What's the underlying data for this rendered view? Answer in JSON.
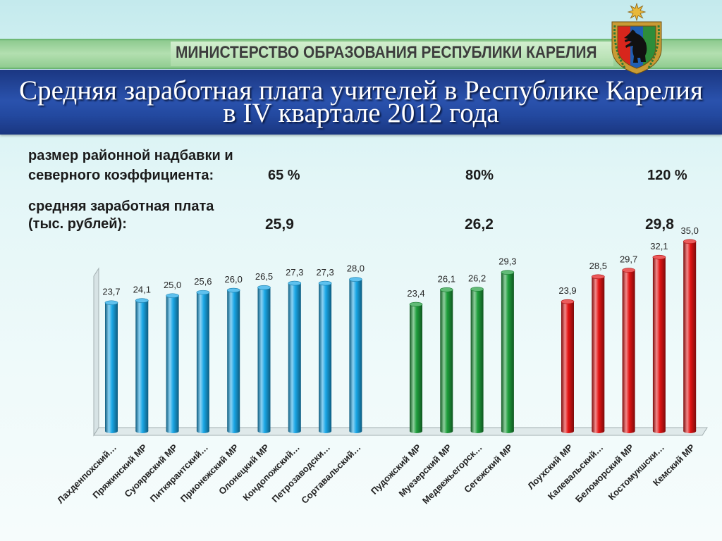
{
  "banner": {
    "text": "МИНИСТЕРСТВО ОБРАЗОВАНИЯ РЕСПУБЛИКИ КАРЕЛИЯ"
  },
  "emblem_icon": "karelia-coat-of-arms-icon",
  "title": {
    "line1": "Средняя заработная плата учителей в Республике Карелия",
    "line2": "в IV квартале 2012 года"
  },
  "info": {
    "allowance_label_line1": "размер районной надбавки и",
    "allowance_label_line2": "северного коэффициента:",
    "salary_label_line1": "средняя заработная плата",
    "salary_label_line2": "(тыс. рублей):"
  },
  "chart_data": {
    "type": "bar",
    "ylim": [
      0,
      40
    ],
    "series": [
      {
        "name": "65 %",
        "average": "25,9",
        "color": "#1aa7e6",
        "categories": [
          "Лахденпохский…",
          "Пряжинский МР",
          "Суоярвский МР",
          "Питкярантский…",
          "Прионежский МР",
          "Олонецкий МР",
          "Кондопожский…",
          "Петрозаводски…",
          "Сортавальский…"
        ],
        "values": [
          23.7,
          24.1,
          25.0,
          25.6,
          26.0,
          26.5,
          27.3,
          27.3,
          28.0
        ],
        "value_labels": [
          "23,7",
          "24,1",
          "25,0",
          "25,6",
          "26,0",
          "26,5",
          "27,3",
          "27,3",
          "28,0"
        ]
      },
      {
        "name": "80%",
        "average": "26,2",
        "color": "#1e9e3c",
        "categories": [
          "Пудожский МР",
          "Муезерский МР",
          "Медвежьегорск…",
          "Сегежский МР"
        ],
        "values": [
          23.4,
          26.1,
          26.2,
          29.3
        ],
        "value_labels": [
          "23,4",
          "26,1",
          "26,2",
          "29,3"
        ]
      },
      {
        "name": "120 %",
        "average": "29,8",
        "color": "#e41414",
        "categories": [
          "Лоухский МР",
          "Калевальский…",
          "Беломорский МР",
          "Костомукшски…",
          "Кемский МР"
        ],
        "values": [
          23.9,
          28.5,
          29.7,
          32.1,
          35.0
        ],
        "value_labels": [
          "23,9",
          "28,5",
          "29,7",
          "32,1",
          "35,0"
        ]
      }
    ]
  }
}
